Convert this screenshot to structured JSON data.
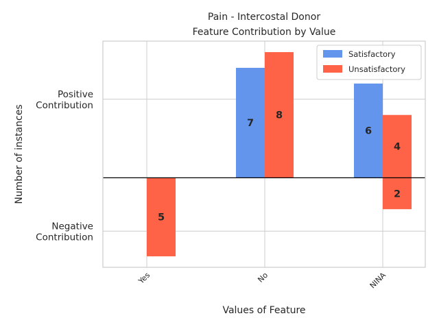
{
  "chart_data": {
    "type": "bar",
    "title": "Pain - Intercostal Donor",
    "subtitle": "Feature Contribution by Value",
    "xlabel": "Values of Feature",
    "ylabel": "Number of instances",
    "categories": [
      "Yes",
      "No",
      "NINA"
    ],
    "ytick_labels": [
      "Positive\nContribution",
      "Negative\nContribution"
    ],
    "ylim": [
      -5.7,
      8.7
    ],
    "grid": true,
    "legend_position": "top-right",
    "series": [
      {
        "name": "Satisfactory",
        "color": "#6495ED",
        "values": [
          0,
          7,
          6
        ],
        "labels": [
          "",
          "7",
          "6"
        ]
      },
      {
        "name": "Unsatisfactory",
        "color": "#FF6347",
        "values": [
          -5,
          8,
          4
        ],
        "labels": [
          "5",
          "8",
          "4"
        ]
      },
      {
        "name": "Unsatisfactory",
        "color": "#FF6347",
        "values": [
          0,
          0,
          -2
        ],
        "labels": [
          "",
          "",
          "2"
        ],
        "legend": false
      }
    ]
  }
}
